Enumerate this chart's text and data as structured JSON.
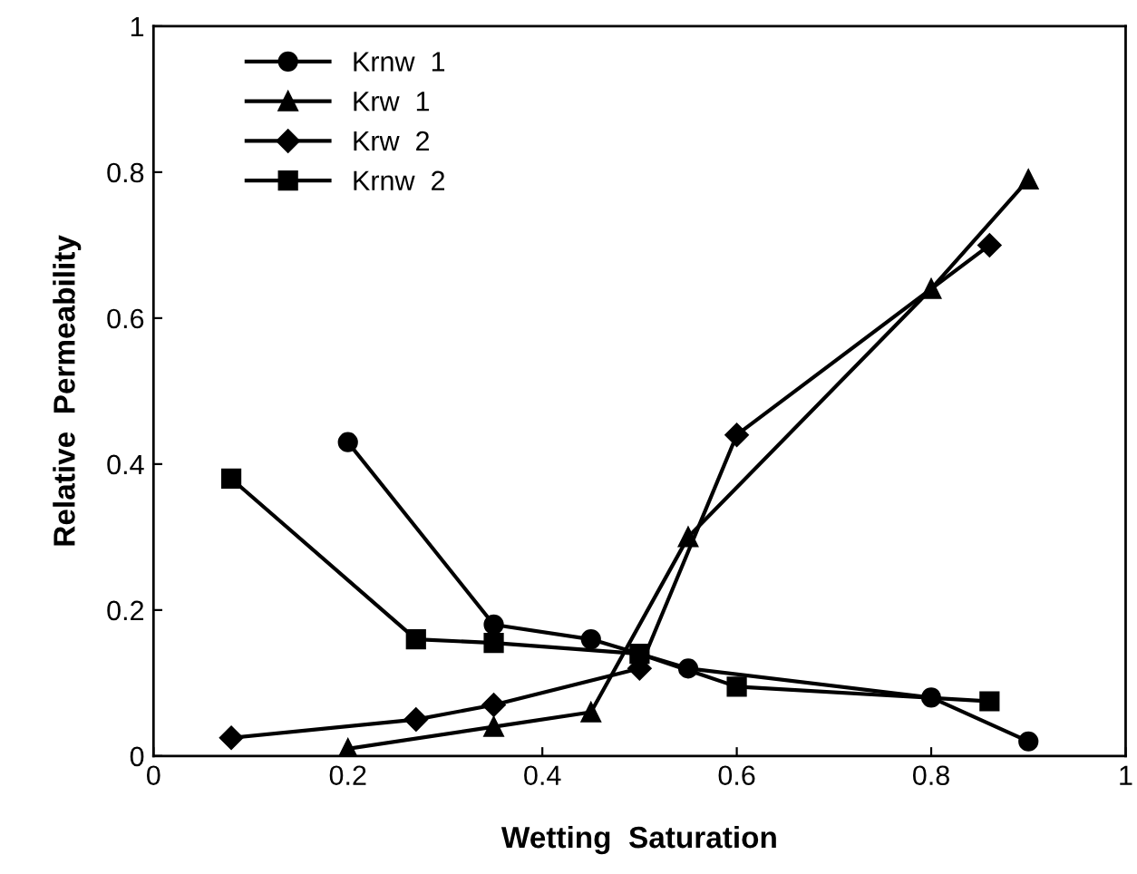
{
  "chart_data": {
    "type": "line",
    "xlabel": "Wetting  Saturation",
    "ylabel": "Relative  Permeability",
    "xlim": [
      0,
      1
    ],
    "xticks": [
      0,
      0.2,
      0.4,
      0.6,
      0.8,
      1
    ],
    "ylim": [
      0,
      1
    ],
    "yticks": [
      0,
      0.2,
      0.4,
      0.6,
      0.8,
      1
    ],
    "grid": false,
    "legend": "top left",
    "line_style": "solid",
    "series": [
      {
        "name": "Krnw  1",
        "color": "#000000",
        "marker": "circle",
        "x": [
          0.2,
          0.35,
          0.45,
          0.55,
          0.8,
          0.9
        ],
        "values": [
          0.43,
          0.18,
          0.16,
          0.12,
          0.08,
          0.02
        ]
      },
      {
        "name": "Krw  1",
        "color": "#000000",
        "marker": "triangle",
        "x": [
          0.2,
          0.35,
          0.45,
          0.55,
          0.8,
          0.9
        ],
        "values": [
          0.01,
          0.04,
          0.06,
          0.3,
          0.64,
          0.79
        ]
      },
      {
        "name": "Krw  2",
        "color": "#000000",
        "marker": "diamond",
        "x": [
          0.08,
          0.27,
          0.35,
          0.5,
          0.6,
          0.86
        ],
        "values": [
          0.025,
          0.05,
          0.07,
          0.12,
          0.44,
          0.7
        ]
      },
      {
        "name": "Krnw  2",
        "color": "#000000",
        "marker": "square",
        "x": [
          0.08,
          0.27,
          0.35,
          0.5,
          0.6,
          0.86
        ],
        "values": [
          0.38,
          0.16,
          0.155,
          0.14,
          0.095,
          0.075
        ]
      }
    ]
  }
}
